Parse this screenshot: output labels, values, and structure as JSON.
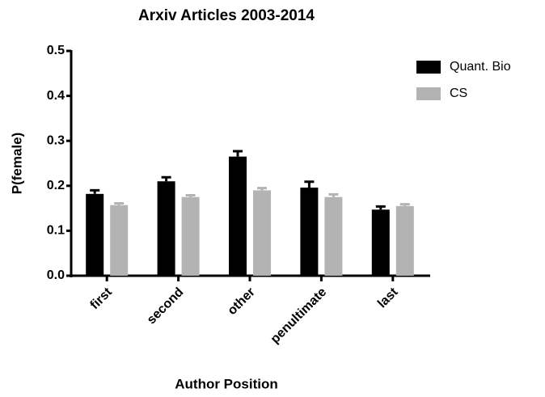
{
  "chart_data": {
    "type": "bar",
    "title": "Arxiv Articles 2003-2014",
    "xlabel": "Author Position",
    "ylabel": "P(female)",
    "categories": [
      "first",
      "second",
      "other",
      "penultimate",
      "last"
    ],
    "series": [
      {
        "name": "Quant. Bio",
        "color": "#000000",
        "values": [
          0.182,
          0.21,
          0.265,
          0.196,
          0.147
        ],
        "errors": [
          0.008,
          0.009,
          0.012,
          0.013,
          0.007
        ]
      },
      {
        "name": "CS",
        "color": "#b3b3b3",
        "values": [
          0.157,
          0.175,
          0.19,
          0.175,
          0.155
        ],
        "errors": [
          0.004,
          0.004,
          0.005,
          0.006,
          0.004
        ]
      }
    ],
    "ylim": [
      0,
      0.5
    ],
    "yticks": [
      {
        "value": 0,
        "label": "0.0"
      },
      0.1,
      0.2,
      0.3,
      0.4,
      0.5
    ],
    "legend": "right"
  }
}
